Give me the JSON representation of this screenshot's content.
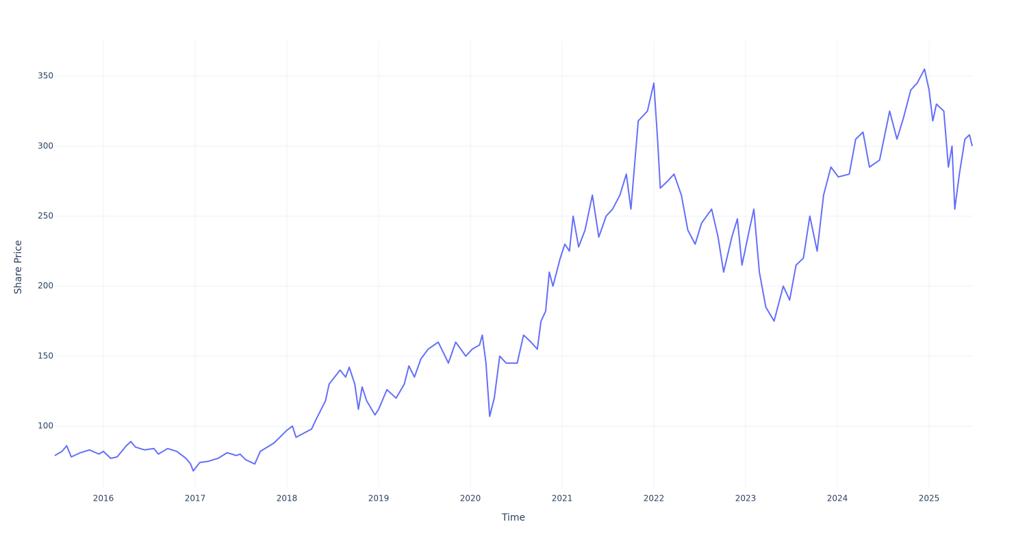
{
  "chart_data": {
    "type": "line",
    "x_label": "Time",
    "y_label": "Share Price",
    "xlim": [
      2015.47,
      2025.47
    ],
    "xticks": [
      2016,
      2017,
      2018,
      2019,
      2020,
      2021,
      2022,
      2023,
      2024,
      2025
    ],
    "ylim": [
      56,
      375
    ],
    "yticks": [
      100,
      150,
      200,
      250,
      300,
      350
    ],
    "grid": true,
    "series": [
      {
        "name": "Share Price",
        "color": "#636efa",
        "x": [
          2015.47,
          2015.55,
          2015.6,
          2015.65,
          2015.75,
          2015.85,
          2015.95,
          2016.0,
          2016.08,
          2016.15,
          2016.2,
          2016.25,
          2016.3,
          2016.35,
          2016.45,
          2016.55,
          2016.6,
          2016.7,
          2016.8,
          2016.9,
          2016.95,
          2016.98,
          2017.05,
          2017.15,
          2017.25,
          2017.35,
          2017.45,
          2017.49,
          2017.55,
          2017.65,
          2017.71,
          2017.86,
          2018.0,
          2018.06,
          2018.1,
          2018.27,
          2018.32,
          2018.42,
          2018.46,
          2018.52,
          2018.58,
          2018.64,
          2018.68,
          2018.74,
          2018.78,
          2018.82,
          2018.87,
          2018.96,
          2019.0,
          2019.09,
          2019.19,
          2019.28,
          2019.33,
          2019.39,
          2019.46,
          2019.54,
          2019.65,
          2019.76,
          2019.84,
          2019.95,
          2020.02,
          2020.1,
          2020.13,
          2020.17,
          2020.21,
          2020.26,
          2020.32,
          2020.39,
          2020.51,
          2020.58,
          2020.66,
          2020.73,
          2020.77,
          2020.82,
          2020.86,
          2020.9,
          2020.98,
          2021.03,
          2021.08,
          2021.12,
          2021.18,
          2021.25,
          2021.33,
          2021.4,
          2021.48,
          2021.55,
          2021.63,
          2021.7,
          2021.75,
          2021.83,
          2021.93,
          2022.0,
          2022.04,
          2022.07,
          2022.15,
          2022.22,
          2022.3,
          2022.37,
          2022.45,
          2022.52,
          2022.63,
          2022.7,
          2022.76,
          2022.85,
          2022.91,
          2022.96,
          2023.04,
          2023.09,
          2023.15,
          2023.22,
          2023.31,
          2023.41,
          2023.48,
          2023.55,
          2023.63,
          2023.7,
          2023.78,
          2023.85,
          2023.93,
          2024.01,
          2024.13,
          2024.2,
          2024.28,
          2024.35,
          2024.46,
          2024.57,
          2024.65,
          2024.72,
          2024.8,
          2024.87,
          2024.95,
          2025.0,
          2025.04,
          2025.08,
          2025.16,
          2025.21,
          2025.25,
          2025.28,
          2025.33,
          2025.39,
          2025.44,
          2025.47
        ],
        "values": [
          79,
          82,
          86,
          78,
          81,
          83,
          80,
          82,
          77,
          78,
          82,
          86,
          89,
          85,
          83,
          84,
          80,
          84,
          82,
          77,
          73,
          68,
          74,
          75,
          77,
          81,
          79,
          80,
          76,
          73,
          82,
          88,
          97,
          100,
          92,
          98,
          105,
          118,
          130,
          135,
          140,
          135,
          142,
          130,
          112,
          128,
          118,
          108,
          112,
          126,
          120,
          130,
          143,
          135,
          148,
          155,
          160,
          145,
          160,
          150,
          155,
          158,
          165,
          145,
          107,
          120,
          150,
          145,
          145,
          165,
          160,
          155,
          175,
          182,
          210,
          200,
          220,
          230,
          225,
          250,
          228,
          240,
          265,
          235,
          250,
          255,
          265,
          280,
          255,
          318,
          325,
          345,
          305,
          270,
          275,
          280,
          265,
          240,
          230,
          245,
          255,
          235,
          210,
          235,
          248,
          215,
          240,
          255,
          210,
          185,
          175,
          200,
          190,
          215,
          220,
          250,
          225,
          265,
          285,
          278,
          280,
          305,
          310,
          285,
          290,
          325,
          305,
          320,
          340,
          345,
          355,
          340,
          318,
          330,
          325,
          285,
          300,
          255,
          280,
          305,
          308,
          300
        ]
      }
    ]
  }
}
